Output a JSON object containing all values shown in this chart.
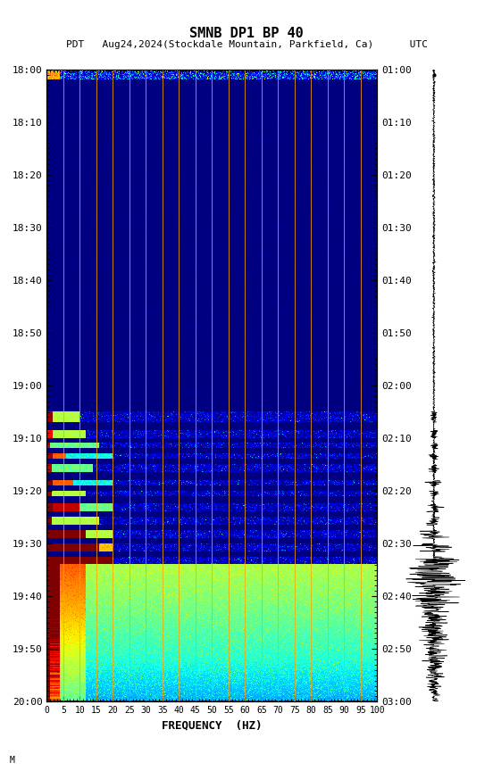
{
  "title_line1": "SMNB DP1 BP 40",
  "title_line2": "PDT   Aug24,2024(Stockdale Mountain, Parkfield, Ca)      UTC",
  "xlabel": "FREQUENCY  (HZ)",
  "freq_ticks": [
    0,
    5,
    10,
    15,
    20,
    25,
    30,
    35,
    40,
    45,
    50,
    55,
    60,
    65,
    70,
    75,
    80,
    85,
    90,
    95,
    100
  ],
  "left_time_labels": [
    "18:00",
    "18:10",
    "18:20",
    "18:30",
    "18:40",
    "18:50",
    "19:00",
    "19:10",
    "19:20",
    "19:30",
    "19:40",
    "19:50",
    "20:00"
  ],
  "right_time_labels": [
    "01:00",
    "01:10",
    "01:20",
    "01:30",
    "01:40",
    "01:50",
    "02:00",
    "02:10",
    "02:20",
    "02:30",
    "02:40",
    "02:50",
    "03:00"
  ],
  "orange_vlines": [
    5,
    10,
    15,
    20,
    25,
    30,
    35,
    40,
    45,
    50,
    55,
    60,
    65,
    70,
    75,
    80,
    85,
    90,
    95,
    100
  ],
  "bg_color": "#ffffff",
  "time_minutes_total": 120,
  "freq_max": 100
}
